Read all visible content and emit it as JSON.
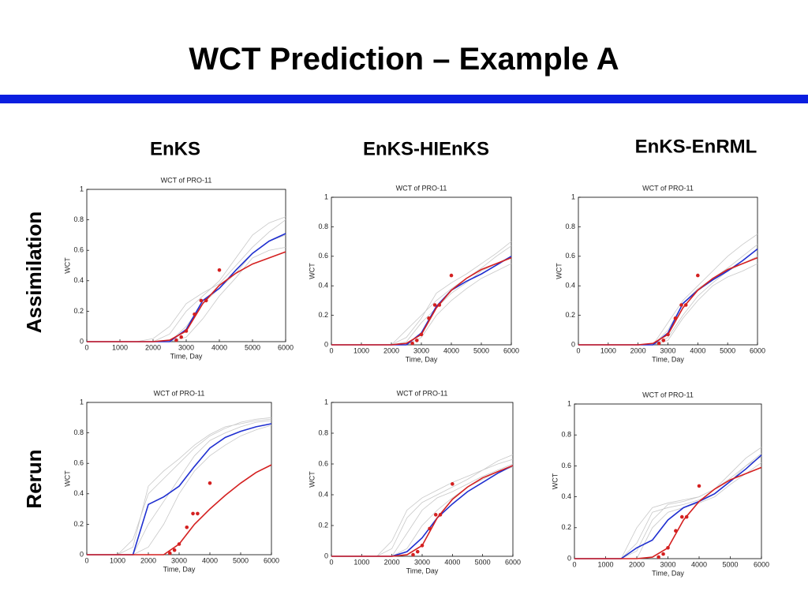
{
  "title": "WCT Prediction – Example A",
  "column_labels": [
    "EnKS",
    "EnKS-HIEnKS",
    "EnKS-EnRML"
  ],
  "row_labels": [
    "Assimilation",
    "Rerun"
  ],
  "chart_data": [
    {
      "type": "line",
      "title": "WCT of PRO-11",
      "xlabel": "Time, Day",
      "ylabel": "WCT",
      "x": [
        0,
        500,
        1000,
        1500,
        2000,
        2500,
        3000,
        3500,
        4000,
        4500,
        5000,
        5500,
        6000
      ],
      "xlim": [
        0,
        6000
      ],
      "ylim": [
        0,
        1
      ],
      "xticks": [
        0,
        1000,
        2000,
        3000,
        4000,
        5000,
        6000
      ],
      "yticks": [
        0,
        0.2,
        0.4,
        0.6,
        0.8,
        1
      ],
      "series": [
        {
          "color": "#c8c8c8",
          "values": [
            0,
            0,
            0,
            0,
            0,
            0.05,
            0.2,
            0.3,
            0.4,
            0.55,
            0.7,
            0.78,
            0.82
          ]
        },
        {
          "color": "#c8c8c8",
          "values": [
            0,
            0,
            0,
            0,
            0.02,
            0.1,
            0.25,
            0.32,
            0.38,
            0.5,
            0.62,
            0.72,
            0.8
          ]
        },
        {
          "color": "#c8c8c8",
          "values": [
            0,
            0,
            0,
            0,
            0,
            0,
            0.1,
            0.25,
            0.35,
            0.45,
            0.58,
            0.66,
            0.7
          ]
        },
        {
          "color": "#c8c8c8",
          "values": [
            0,
            0,
            0,
            0,
            0,
            0,
            0.03,
            0.15,
            0.3,
            0.42,
            0.55,
            0.6,
            0.62
          ]
        },
        {
          "color": "#1f2fd0",
          "values": [
            0,
            0,
            0,
            0,
            0,
            0,
            0.08,
            0.27,
            0.35,
            0.47,
            0.58,
            0.66,
            0.71
          ]
        },
        {
          "color": "#d42020",
          "values": [
            0,
            0,
            0,
            0,
            0,
            0.01,
            0.07,
            0.25,
            0.37,
            0.45,
            0.51,
            0.55,
            0.59
          ]
        }
      ],
      "observations": {
        "color": "#d42020",
        "x": [
          2700,
          2850,
          3000,
          3250,
          3450,
          3600,
          4000
        ],
        "values": [
          0.01,
          0.03,
          0.07,
          0.18,
          0.27,
          0.27,
          0.47
        ]
      }
    },
    {
      "type": "line",
      "title": "WCT of PRO-11",
      "xlabel": "Time, Day",
      "ylabel": "WCT",
      "x": [
        0,
        500,
        1000,
        1500,
        2000,
        2500,
        3000,
        3500,
        4000,
        4500,
        5000,
        5500,
        6000
      ],
      "xlim": [
        0,
        6000
      ],
      "ylim": [
        0,
        1
      ],
      "xticks": [
        0,
        1000,
        2000,
        3000,
        4000,
        5000,
        6000
      ],
      "yticks": [
        0,
        0.2,
        0.4,
        0.6,
        0.8,
        1
      ],
      "series": [
        {
          "color": "#c8c8c8",
          "values": [
            0,
            0,
            0,
            0,
            0,
            0.1,
            0.2,
            0.3,
            0.38,
            0.45,
            0.52,
            0.6,
            0.67
          ]
        },
        {
          "color": "#c8c8c8",
          "values": [
            0,
            0,
            0,
            0,
            0,
            0.02,
            0.15,
            0.25,
            0.35,
            0.42,
            0.5,
            0.55,
            0.6
          ]
        },
        {
          "color": "#c8c8c8",
          "values": [
            0,
            0,
            0,
            0,
            0,
            0,
            0.05,
            0.2,
            0.3,
            0.38,
            0.45,
            0.5,
            0.55
          ]
        },
        {
          "color": "#c8c8c8",
          "values": [
            0,
            0,
            0,
            0,
            0,
            0.05,
            0.18,
            0.35,
            0.42,
            0.48,
            0.55,
            0.62,
            0.7
          ]
        },
        {
          "color": "#1f2fd0",
          "values": [
            0,
            0,
            0,
            0,
            0,
            0,
            0.08,
            0.26,
            0.37,
            0.43,
            0.48,
            0.54,
            0.6
          ]
        },
        {
          "color": "#d42020",
          "values": [
            0,
            0,
            0,
            0,
            0,
            0.01,
            0.07,
            0.25,
            0.37,
            0.45,
            0.51,
            0.55,
            0.59
          ]
        }
      ],
      "observations": {
        "color": "#d42020",
        "x": [
          2700,
          2850,
          3000,
          3250,
          3450,
          3600,
          4000
        ],
        "values": [
          0.01,
          0.03,
          0.07,
          0.18,
          0.27,
          0.27,
          0.47
        ]
      }
    },
    {
      "type": "line",
      "title": "WCT of PRO-11",
      "xlabel": "Time, Day",
      "ylabel": "WCT",
      "x": [
        0,
        500,
        1000,
        1500,
        2000,
        2500,
        3000,
        3500,
        4000,
        4500,
        5000,
        5500,
        6000
      ],
      "xlim": [
        0,
        6000
      ],
      "ylim": [
        0,
        1
      ],
      "xticks": [
        0,
        1000,
        2000,
        3000,
        4000,
        5000,
        6000
      ],
      "yticks": [
        0,
        0.2,
        0.4,
        0.6,
        0.8,
        1
      ],
      "series": [
        {
          "color": "#c8c8c8",
          "values": [
            0,
            0,
            0,
            0,
            0,
            0,
            0.15,
            0.3,
            0.4,
            0.5,
            0.6,
            0.68,
            0.75
          ]
        },
        {
          "color": "#c8c8c8",
          "values": [
            0,
            0,
            0,
            0,
            0,
            0,
            0.05,
            0.2,
            0.33,
            0.42,
            0.5,
            0.55,
            0.6
          ]
        },
        {
          "color": "#c8c8c8",
          "values": [
            0,
            0,
            0,
            0,
            0,
            0,
            0.1,
            0.28,
            0.38,
            0.45,
            0.52,
            0.6,
            0.68
          ]
        },
        {
          "color": "#c8c8c8",
          "values": [
            0,
            0,
            0,
            0,
            0,
            0,
            0.03,
            0.18,
            0.3,
            0.4,
            0.46,
            0.5,
            0.55
          ]
        },
        {
          "color": "#1f2fd0",
          "values": [
            0,
            0,
            0,
            0,
            0,
            0,
            0.08,
            0.28,
            0.37,
            0.44,
            0.5,
            0.57,
            0.65
          ]
        },
        {
          "color": "#d42020",
          "values": [
            0,
            0,
            0,
            0,
            0,
            0.01,
            0.07,
            0.25,
            0.37,
            0.45,
            0.51,
            0.55,
            0.59
          ]
        }
      ],
      "observations": {
        "color": "#d42020",
        "x": [
          2700,
          2850,
          3000,
          3250,
          3450,
          3600,
          4000
        ],
        "values": [
          0.01,
          0.03,
          0.07,
          0.18,
          0.27,
          0.27,
          0.47
        ]
      }
    },
    {
      "type": "line",
      "title": "WCT of PRO-11",
      "xlabel": "Time, Day",
      "ylabel": "WCT",
      "x": [
        0,
        500,
        1000,
        1500,
        2000,
        2500,
        3000,
        3500,
        4000,
        4500,
        5000,
        5500,
        6000
      ],
      "xlim": [
        0,
        6000
      ],
      "ylim": [
        0,
        1
      ],
      "xticks": [
        0,
        1000,
        2000,
        3000,
        4000,
        5000,
        6000
      ],
      "yticks": [
        0,
        0.2,
        0.4,
        0.6,
        0.8,
        1
      ],
      "series": [
        {
          "color": "#c8c8c8",
          "values": [
            0,
            0,
            0,
            0.1,
            0.4,
            0.5,
            0.6,
            0.7,
            0.78,
            0.83,
            0.87,
            0.89,
            0.9
          ]
        },
        {
          "color": "#c8c8c8",
          "values": [
            0,
            0,
            0,
            0,
            0.2,
            0.35,
            0.5,
            0.65,
            0.75,
            0.8,
            0.84,
            0.87,
            0.88
          ]
        },
        {
          "color": "#c8c8c8",
          "values": [
            0,
            0,
            0,
            0,
            0.05,
            0.2,
            0.4,
            0.55,
            0.65,
            0.72,
            0.78,
            0.82,
            0.85
          ]
        },
        {
          "color": "#c8c8c8",
          "values": [
            0,
            0,
            0,
            0.05,
            0.45,
            0.55,
            0.63,
            0.72,
            0.79,
            0.84,
            0.86,
            0.88,
            0.89
          ]
        },
        {
          "color": "#1f2fd0",
          "values": [
            0,
            0,
            0,
            0,
            0.33,
            0.38,
            0.45,
            0.58,
            0.7,
            0.77,
            0.81,
            0.84,
            0.86
          ]
        },
        {
          "color": "#d42020",
          "values": [
            0,
            0,
            0,
            0,
            0,
            0,
            0.07,
            0.2,
            0.3,
            0.39,
            0.47,
            0.54,
            0.59
          ]
        }
      ],
      "observations": {
        "color": "#d42020",
        "x": [
          2700,
          2850,
          3000,
          3250,
          3450,
          3600,
          4000
        ],
        "values": [
          0.01,
          0.03,
          0.07,
          0.18,
          0.27,
          0.27,
          0.47
        ]
      }
    },
    {
      "type": "line",
      "title": "WCT of PRO-11",
      "xlabel": "Time, Day",
      "ylabel": "WCT",
      "x": [
        0,
        500,
        1000,
        1500,
        2000,
        2500,
        3000,
        3500,
        4000,
        4500,
        5000,
        5500,
        6000
      ],
      "xlim": [
        0,
        6000
      ],
      "ylim": [
        0,
        1
      ],
      "xticks": [
        0,
        1000,
        2000,
        3000,
        4000,
        5000,
        6000
      ],
      "yticks": [
        0,
        0.2,
        0.4,
        0.6,
        0.8,
        1
      ],
      "series": [
        {
          "color": "#c8c8c8",
          "values": [
            0,
            0,
            0,
            0,
            0.1,
            0.3,
            0.38,
            0.43,
            0.48,
            0.52,
            0.56,
            0.6,
            0.63
          ]
        },
        {
          "color": "#c8c8c8",
          "values": [
            0,
            0,
            0,
            0,
            0,
            0.15,
            0.3,
            0.38,
            0.42,
            0.47,
            0.52,
            0.56,
            0.6
          ]
        },
        {
          "color": "#c8c8c8",
          "values": [
            0,
            0,
            0,
            0,
            0,
            0.05,
            0.2,
            0.3,
            0.38,
            0.45,
            0.5,
            0.55,
            0.58
          ]
        },
        {
          "color": "#c8c8c8",
          "values": [
            0,
            0,
            0,
            0,
            0.05,
            0.25,
            0.35,
            0.4,
            0.45,
            0.5,
            0.56,
            0.62,
            0.66
          ]
        },
        {
          "color": "#1f2fd0",
          "values": [
            0,
            0,
            0,
            0,
            0,
            0.03,
            0.12,
            0.25,
            0.34,
            0.42,
            0.48,
            0.54,
            0.59
          ]
        },
        {
          "color": "#d42020",
          "values": [
            0,
            0,
            0,
            0,
            0,
            0.01,
            0.07,
            0.25,
            0.37,
            0.45,
            0.51,
            0.55,
            0.59
          ]
        }
      ],
      "observations": {
        "color": "#d42020",
        "x": [
          2700,
          2850,
          3000,
          3250,
          3450,
          3600,
          4000
        ],
        "values": [
          0.01,
          0.03,
          0.07,
          0.18,
          0.27,
          0.27,
          0.47
        ]
      }
    },
    {
      "type": "line",
      "title": "WCT of PRO-11",
      "xlabel": "Time, Day",
      "ylabel": "WCT",
      "x": [
        0,
        500,
        1000,
        1500,
        2000,
        2500,
        3000,
        3500,
        4000,
        4500,
        5000,
        5500,
        6000
      ],
      "xlim": [
        0,
        6000
      ],
      "ylim": [
        0,
        1
      ],
      "xticks": [
        0,
        1000,
        2000,
        3000,
        4000,
        5000,
        6000
      ],
      "yticks": [
        0,
        0.2,
        0.4,
        0.6,
        0.8,
        1
      ],
      "series": [
        {
          "color": "#c8c8c8",
          "values": [
            0,
            0,
            0,
            0,
            0.2,
            0.33,
            0.36,
            0.38,
            0.4,
            0.45,
            0.55,
            0.65,
            0.72
          ]
        },
        {
          "color": "#c8c8c8",
          "values": [
            0,
            0,
            0,
            0,
            0.1,
            0.3,
            0.33,
            0.35,
            0.38,
            0.42,
            0.5,
            0.6,
            0.68
          ]
        },
        {
          "color": "#c8c8c8",
          "values": [
            0,
            0,
            0,
            0,
            0,
            0.2,
            0.3,
            0.33,
            0.36,
            0.4,
            0.48,
            0.55,
            0.62
          ]
        },
        {
          "color": "#c8c8c8",
          "values": [
            0,
            0,
            0,
            0,
            0.05,
            0.25,
            0.35,
            0.37,
            0.4,
            0.45,
            0.52,
            0.6,
            0.66
          ]
        },
        {
          "color": "#1f2fd0",
          "values": [
            0,
            0,
            0,
            0,
            0.07,
            0.12,
            0.25,
            0.33,
            0.37,
            0.42,
            0.5,
            0.58,
            0.67
          ]
        },
        {
          "color": "#d42020",
          "values": [
            0,
            0,
            0,
            0,
            0,
            0.01,
            0.07,
            0.25,
            0.37,
            0.45,
            0.51,
            0.55,
            0.59
          ]
        }
      ],
      "observations": {
        "color": "#d42020",
        "x": [
          2700,
          2850,
          3000,
          3250,
          3450,
          3600,
          4000
        ],
        "values": [
          0.01,
          0.03,
          0.07,
          0.18,
          0.27,
          0.27,
          0.47
        ]
      }
    }
  ]
}
